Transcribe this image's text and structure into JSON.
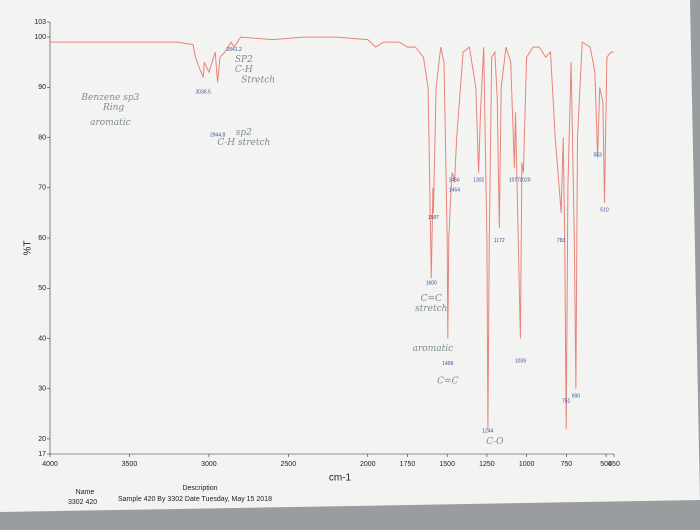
{
  "chart_data": {
    "type": "line",
    "x": [
      4000,
      3500,
      3200,
      3100,
      3085,
      3062,
      3036,
      3028,
      3000,
      2980,
      2960,
      2944.8,
      2930,
      2900,
      2860,
      2841,
      2800,
      2600,
      2400,
      2200,
      2000,
      1950,
      1900,
      1800,
      1750,
      1700,
      1650,
      1620,
      1600,
      1590,
      1587,
      1570,
      1540,
      1520,
      1500,
      1496,
      1490,
      1470,
      1456,
      1454,
      1440,
      1400,
      1360,
      1320,
      1302,
      1290,
      1270,
      1250,
      1244,
      1235,
      1220,
      1200,
      1185,
      1172,
      1160,
      1130,
      1100,
      1077,
      1070,
      1039,
      1030,
      1020,
      1000,
      960,
      920,
      880,
      850,
      820,
      790,
      783,
      770,
      760,
      751,
      740,
      720,
      700,
      690,
      680,
      650,
      600,
      570,
      553,
      540,
      520,
      510,
      495,
      470,
      450
    ],
    "series": [
      {
        "name": "%T",
        "color": "#e8837a",
        "values": [
          99,
          99,
          99,
          98.5,
          96,
          94,
          92,
          95,
          93,
          95,
          97,
          91,
          96,
          97,
          99,
          98,
          100,
          99.5,
          100,
          100,
          99.5,
          98,
          99,
          99,
          98,
          98,
          96,
          90,
          52,
          70,
          65,
          90,
          98,
          95,
          60,
          40,
          60,
          73,
          72,
          71,
          80,
          97,
          98,
          90,
          73,
          85,
          98,
          60,
          22,
          60,
          96,
          97,
          88,
          62,
          90,
          98,
          95,
          74,
          85,
          40,
          75,
          73,
          96,
          98,
          98,
          96,
          97,
          80,
          68,
          65,
          80,
          60,
          22,
          70,
          95,
          60,
          30,
          80,
          99,
          98,
          93,
          76,
          90,
          87,
          67,
          96,
          97,
          97
        ]
      }
    ],
    "xlim": [
      4000,
      450
    ],
    "ylim": [
      17,
      103
    ],
    "xticks": [
      4000,
      3500,
      3000,
      2500,
      2000,
      1750,
      1500,
      1250,
      1000,
      750,
      500,
      450
    ],
    "yticks": [
      17,
      20,
      30,
      40,
      50,
      60,
      70,
      80,
      90,
      100,
      103
    ],
    "ylabel": "%T",
    "xlabel": "cm-1",
    "annotations": [
      {
        "text": "3036.5",
        "x": 3036,
        "y": 89,
        "style": "peak"
      },
      {
        "text": "2944.8",
        "x": 2944.8,
        "y": 80.5,
        "style": "peak"
      },
      {
        "text": "2841.2",
        "x": 2841,
        "y": 97.5,
        "style": "peak"
      },
      {
        "text": "1600",
        "x": 1600,
        "y": 51,
        "style": "peak"
      },
      {
        "text": "1587",
        "x": 1587,
        "y": 64,
        "style": "peak"
      },
      {
        "text": "1456",
        "x": 1456,
        "y": 71.5,
        "style": "peak"
      },
      {
        "text": "1454",
        "x": 1454,
        "y": 69.5,
        "style": "peak"
      },
      {
        "text": "1302",
        "x": 1302,
        "y": 71.5,
        "style": "peak"
      },
      {
        "text": "1077",
        "x": 1077,
        "y": 71.5,
        "style": "peak"
      },
      {
        "text": "1020",
        "x": 1010,
        "y": 71.5,
        "style": "peak"
      },
      {
        "text": "1172",
        "x": 1172,
        "y": 59.5,
        "style": "peak"
      },
      {
        "text": "1496",
        "x": 1496,
        "y": 35,
        "style": "peak"
      },
      {
        "text": "1039",
        "x": 1039,
        "y": 35.5,
        "style": "peak"
      },
      {
        "text": "1244",
        "x": 1244,
        "y": 21.5,
        "style": "peak"
      },
      {
        "text": "783",
        "x": 783,
        "y": 59.5,
        "style": "peak"
      },
      {
        "text": "751",
        "x": 751,
        "y": 27.5,
        "style": "peak"
      },
      {
        "text": "690",
        "x": 690,
        "y": 28.5,
        "style": "peak"
      },
      {
        "text": "553",
        "x": 553,
        "y": 76.5,
        "style": "peak"
      },
      {
        "text": "510",
        "x": 510,
        "y": 65.5,
        "style": "peak"
      },
      {
        "text": "Benzene sp3",
        "x": 3620,
        "y": 88,
        "style": "hand"
      },
      {
        "text": "Ring",
        "x": 3600,
        "y": 86,
        "style": "hand"
      },
      {
        "text": "aromatic",
        "x": 3620,
        "y": 83,
        "style": "hand"
      },
      {
        "text": "SP2",
        "x": 2780,
        "y": 95.5,
        "style": "hand"
      },
      {
        "text": "C-H",
        "x": 2780,
        "y": 93.5,
        "style": "hand"
      },
      {
        "text": "Stretch",
        "x": 2690,
        "y": 91.5,
        "style": "hand"
      },
      {
        "text": "sp2",
        "x": 2780,
        "y": 81,
        "style": "hand"
      },
      {
        "text": "C-H stretch",
        "x": 2780,
        "y": 79,
        "style": "hand"
      },
      {
        "text": "C=C",
        "x": 1600,
        "y": 48,
        "style": "hand"
      },
      {
        "text": "stretch",
        "x": 1600,
        "y": 46,
        "style": "hand"
      },
      {
        "text": "aromatic",
        "x": 1590,
        "y": 38,
        "style": "hand"
      },
      {
        "text": "C=C",
        "x": 1496,
        "y": 31.5,
        "style": "hand"
      },
      {
        "text": "C-O",
        "x": 1200,
        "y": 19.5,
        "style": "hand"
      }
    ],
    "footer": {
      "name_label": "Name",
      "description_label": "Description",
      "name": "3302 420",
      "description": "Sample 420 By 3302 Date Tuesday, May 15 2018"
    }
  }
}
